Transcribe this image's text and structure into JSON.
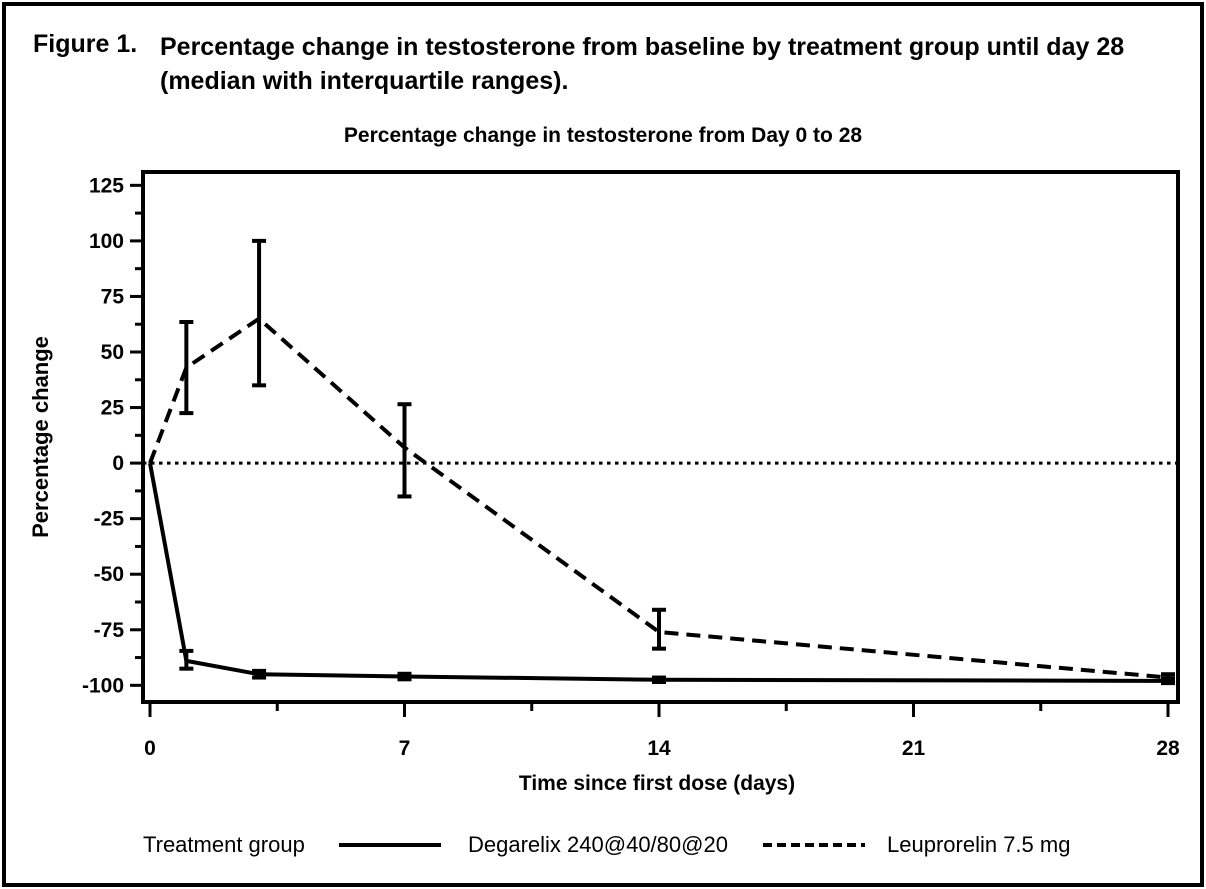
{
  "figure": {
    "caption_label": "Figure 1.",
    "caption_line1": "Percentage change in testosterone from baseline by treatment group until day 28",
    "caption_line2": "(median with interquartile ranges)."
  },
  "chart_data": {
    "type": "line",
    "title": "Percentage change in testosterone from Day 0 to 28",
    "xlabel": "Time since first dose (days)",
    "ylabel": "Percentage change",
    "xlim": [
      0,
      28
    ],
    "ylim": [
      -107.5,
      131
    ],
    "xticks_major": [
      0,
      7,
      14,
      21,
      28
    ],
    "xticks_minor": [
      3.5,
      10.5,
      17.5,
      24.5
    ],
    "yticks_major": [
      125,
      100,
      75,
      50,
      25,
      0,
      -25,
      -50,
      -75,
      -100
    ],
    "yticks_minor": [
      112.5,
      87.5,
      62.5,
      37.5,
      12.5,
      -12.5,
      -37.5,
      -62.5,
      -87.5
    ],
    "reference_line_y": 0,
    "grid": false,
    "line_color": "#000000",
    "legend": {
      "position": "bottom",
      "title": "Treatment group"
    },
    "x": [
      0,
      1,
      3,
      7,
      14,
      28
    ],
    "series": [
      {
        "name": "Degarelix 240@40/80@20",
        "style": "solid",
        "median": [
          0,
          -89,
          -95,
          -96,
          -97.5,
          -98
        ],
        "q1": [
          null,
          -92.5,
          -96.5,
          -97.3,
          -98.5,
          -99
        ],
        "q3": [
          null,
          -84.5,
          -93.5,
          -94.8,
          -96.5,
          -96.8
        ]
      },
      {
        "name": "Leuprorelin 7.5 mg",
        "style": "dashed",
        "median": [
          0,
          43,
          65,
          7,
          -76,
          -96.5
        ],
        "q1": [
          null,
          22.5,
          35,
          -15,
          -83.5,
          -98
        ],
        "q3": [
          null,
          63.5,
          100,
          26.5,
          -66,
          -95
        ]
      }
    ]
  }
}
